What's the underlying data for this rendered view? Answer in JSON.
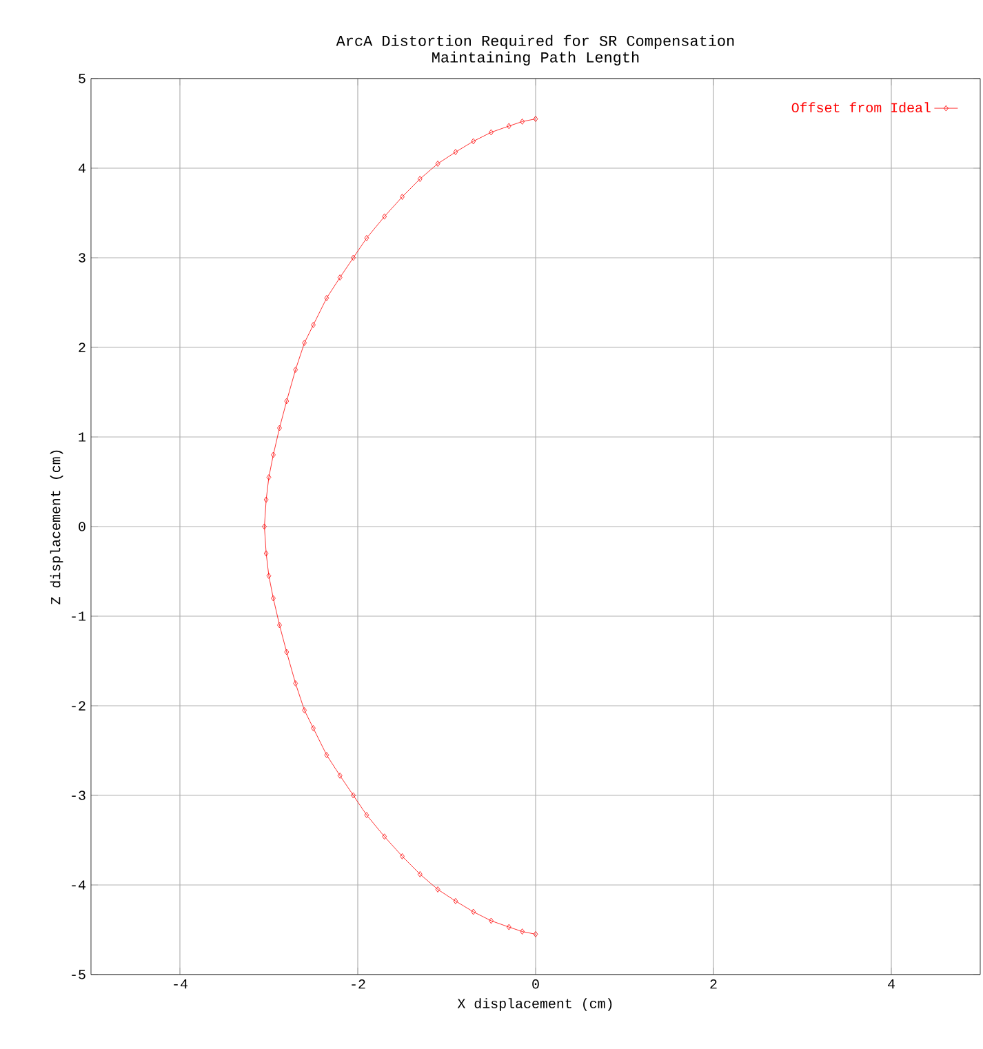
{
  "chart_data": {
    "type": "line",
    "title": "ArcA Distortion Required for SR Compensation\nMaintaining Path Length",
    "xlabel": "X displacement (cm)",
    "ylabel": "Z displacement (cm)",
    "xlim": [
      -5,
      5
    ],
    "ylim": [
      -5,
      5
    ],
    "xticks": [
      -4,
      -2,
      0,
      2,
      4
    ],
    "yticks": [
      -5,
      -4,
      -3,
      -2,
      -1,
      0,
      1,
      2,
      3,
      4,
      5
    ],
    "grid": true,
    "legend": "top right",
    "marker": "diamond",
    "line_style": "solid",
    "series": [
      {
        "name": "Offset from Ideal",
        "color": "#ff0000",
        "x": [
          0,
          -0.15,
          -0.3,
          -0.5,
          -0.7,
          -0.9,
          -1.1,
          -1.3,
          -1.5,
          -1.7,
          -1.9,
          -2.05,
          -2.2,
          -2.35,
          -2.5,
          -2.6,
          -2.7,
          -2.8,
          -2.88,
          -2.95,
          -3.0,
          -3.03,
          -3.05,
          -3.03,
          -3.0,
          -2.95,
          -2.88,
          -2.8,
          -2.7,
          -2.6,
          -2.5,
          -2.35,
          -2.2,
          -2.05,
          -1.9,
          -1.7,
          -1.5,
          -1.3,
          -1.1,
          -0.9,
          -0.7,
          -0.5,
          -0.3,
          -0.15,
          0
        ],
        "values": [
          4.55,
          4.52,
          4.47,
          4.4,
          4.3,
          4.18,
          4.05,
          3.88,
          3.68,
          3.46,
          3.22,
          3.0,
          2.78,
          2.55,
          2.25,
          2.05,
          1.75,
          1.4,
          1.1,
          0.8,
          0.55,
          0.3,
          0,
          -0.3,
          -0.55,
          -0.8,
          -1.1,
          -1.4,
          -1.75,
          -2.05,
          -2.25,
          -2.55,
          -2.78,
          -3.0,
          -3.22,
          -3.46,
          -3.68,
          -3.88,
          -4.05,
          -4.18,
          -4.3,
          -4.4,
          -4.47,
          -4.52,
          -4.55
        ]
      }
    ]
  }
}
